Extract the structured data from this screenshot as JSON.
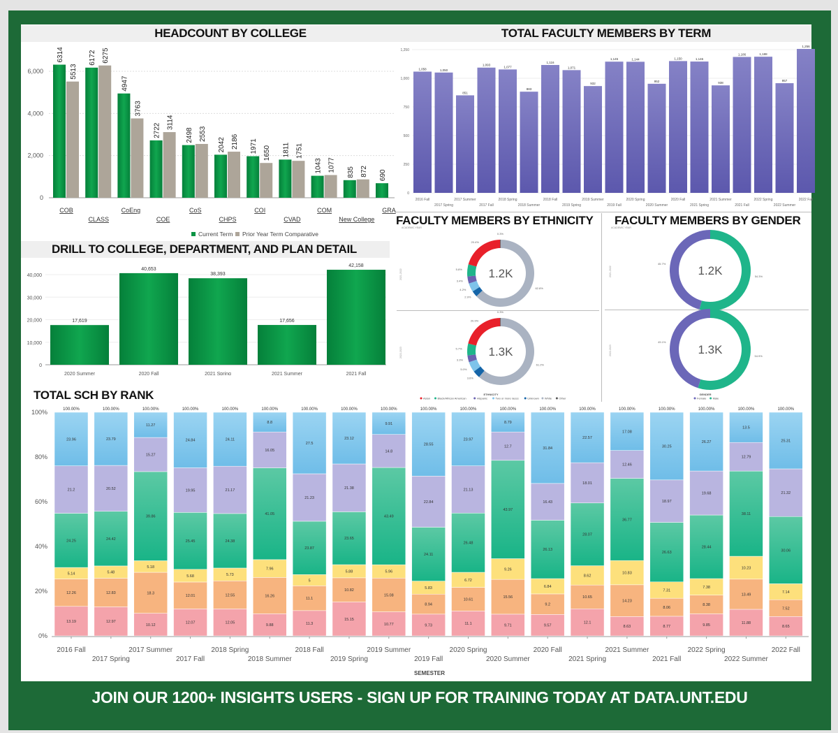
{
  "colors": {
    "frame": "#1d6a37",
    "current": "#0a9444",
    "prior": "#ada599",
    "faculty": "#6a66b6"
  },
  "headcount": {
    "title": "HEADCOUNT BY COLLEGE",
    "chart_data": {
      "type": "bar",
      "categories": [
        "COB",
        "CLASS",
        "CoEng",
        "COE",
        "CoS",
        "CHPS",
        "COI",
        "CVAD",
        "COM",
        "New College",
        "GRA"
      ],
      "series": [
        {
          "name": "Current Term",
          "values": [
            6314,
            6172,
            4947,
            2722,
            2498,
            2042,
            1971,
            1811,
            1043,
            835,
            690
          ]
        },
        {
          "name": "Prior Year Term Comparative",
          "values": [
            5513,
            6275,
            3763,
            3114,
            2553,
            2186,
            1650,
            1751,
            1077,
            872,
            null
          ]
        }
      ],
      "yticks": [
        "0",
        "2,000",
        "4,000",
        "6,000"
      ],
      "ylim": [
        0,
        7000
      ],
      "legend": "bottom"
    }
  },
  "drill": {
    "title": "DRILL TO COLLEGE, DEPARTMENT, AND PLAN DETAIL",
    "chart_data": {
      "type": "bar",
      "categories": [
        "2020 Summer",
        "2020 Fall",
        "2021 Spring",
        "2021 Summer",
        "2021 Fall"
      ],
      "values": [
        17619,
        40653,
        38393,
        17656,
        42158
      ],
      "labels": [
        "17,619",
        "40,653",
        "38,393",
        "17,656",
        "42,158"
      ],
      "yticks": [
        "0",
        "10,000",
        "20,000",
        "30,000",
        "40,000"
      ],
      "ylim": [
        0,
        45000
      ]
    }
  },
  "faculty_term": {
    "title": "TOTAL FACULTY MEMBERS BY TERM",
    "chart_data": {
      "type": "bar",
      "categories": [
        "2016 Fall",
        "2017 Spring",
        "2017 Summer",
        "2017 Fall",
        "2018 Spring",
        "2018 Summer",
        "2018 Fall",
        "2019 Spring",
        "2019 Summer",
        "2019 Fall",
        "2020 Spring",
        "2020 Summer",
        "2020 Fall",
        "2021 Spring",
        "2021 Summer",
        "2021 Fall",
        "2022 Spring",
        "2022 Summer",
        "2022 Fall"
      ],
      "values": [
        1058,
        1050,
        851,
        1093,
        1077,
        883,
        1116,
        1071,
        932,
        1145,
        1144,
        952,
        1150,
        1146,
        938,
        1186,
        1188,
        957,
        1256
      ],
      "labels": [
        "1,058",
        "1,050",
        "851",
        "1,093",
        "1,077",
        "883",
        "1,116",
        "1,071",
        "932",
        "1,145",
        "1,144",
        "952",
        "1,150",
        "1,146",
        "938",
        "1,186",
        "1,188",
        "957",
        "1,256"
      ],
      "yticks": [
        "0",
        "250",
        "500",
        "750",
        "1,000",
        "1,250"
      ],
      "ylim": [
        0,
        1250
      ]
    }
  },
  "ethnicity": {
    "title": "FACULTY MEMBERS BY ETHNICITY",
    "row_header": "ACADEMIC YEAR",
    "legend_title": "ETHNICITY",
    "chart_data": {
      "type": "pie",
      "categories": [
        "White",
        "Unknown",
        "Two or more races",
        "Hispanic",
        "Black/African American",
        "Asian",
        "Other"
      ],
      "legend_order": [
        "Asian",
        "Black/African American",
        "Hispanic",
        "Two or more races",
        "Unknown",
        "White",
        "Other"
      ],
      "colors": {
        "Asian": "#e8202a",
        "Black/African American": "#1fb58a",
        "Hispanic": "#6a62b0",
        "Two or more races": "#7ec3ea",
        "Unknown": "#1565a8",
        "White": "#aab3c2",
        "Other": "#555555"
      },
      "panels": [
        {
          "year": "2021-2022",
          "total": "1.2K",
          "values": [
            62.8,
            2.9,
            4.2,
            3.4,
            5.8,
            20.4,
            0.3
          ],
          "labels": [
            "62.8%",
            "2.9%",
            "4.2%",
            "3.4%",
            "5.8%",
            "20.4%",
            "0.3%"
          ]
        },
        {
          "year": "2022-2023",
          "total": "1.3K",
          "values": [
            61.2,
            3.6,
            5.0,
            3.3,
            5.7,
            20.9,
            0.3
          ],
          "labels": [
            "61.2%",
            "3.6%",
            "5.0%",
            "3.3%",
            "5.7%",
            "20.9%",
            "0.3%"
          ]
        }
      ]
    }
  },
  "gender": {
    "title": "FACULTY MEMBERS BY GENDER",
    "row_header": "ACADEMIC YEAR",
    "legend_title": "GENDER",
    "chart_data": {
      "type": "pie",
      "categories": [
        "Male",
        "Female"
      ],
      "legend_order": [
        "Female",
        "Male"
      ],
      "colors": {
        "Male": "#1fb58a",
        "Female": "#6b67b8"
      },
      "panels": [
        {
          "year": "2021-2022",
          "total": "1.2K",
          "values": [
            54.3,
            45.7
          ],
          "labels": [
            "54.3%",
            "45.7%"
          ]
        },
        {
          "year": "2022-2023",
          "total": "1.3K",
          "values": [
            54.9,
            45.1
          ],
          "labels": [
            "54.9%",
            "45.1%"
          ]
        }
      ]
    }
  },
  "sch": {
    "title": "TOTAL SCH BY RANK",
    "xlabel": "SEMESTER",
    "chart_data": {
      "type": "bar",
      "stacked": true,
      "percent": true,
      "categories": [
        "2016 Fall",
        "2017 Spring",
        "2017 Summer",
        "2017 Fall",
        "2018 Spring",
        "2018 Summer",
        "2018 Fall",
        "2019 Spring",
        "2019 Summer",
        "2019 Fall",
        "2020 Spring",
        "2020 Summer",
        "2020 Fall",
        "2021 Spring",
        "2021 Summer",
        "2021 Fall",
        "2022 Spring",
        "2022 Summer",
        "2022 Fall"
      ],
      "series_colors": [
        "#f4a3ab",
        "#f7b47f",
        "#fde07c",
        "#3cc49a",
        "#b9b5e0",
        "#8ccdf0"
      ],
      "series": [
        {
          "values": [
            13.19,
            12.97,
            10.12,
            12.07,
            12.05,
            9.88,
            11.3,
            15.15,
            10.77,
            9.73,
            11.1,
            9.71,
            9.57,
            12.1,
            8.63,
            8.77,
            9.85,
            11.88,
            8.65
          ]
        },
        {
          "values": [
            12.26,
            12.83,
            18.3,
            12.01,
            12.55,
            16.26,
            11.1,
            10.82,
            15.08,
            8.94,
            10.61,
            15.56,
            9.2,
            10.65,
            14.23,
            8.06,
            8.38,
            13.49,
            7.52
          ]
        },
        {
          "values": [
            5.14,
            5.48,
            5.18,
            5.68,
            5.73,
            7.96,
            5.0,
            5.88,
            5.96,
            5.83,
            6.72,
            9.26,
            6.84,
            8.62,
            10.83,
            7.31,
            7.38,
            10.23,
            7.14
          ]
        },
        {
          "values": [
            24.25,
            24.42,
            39.86,
            25.45,
            24.38,
            41.05,
            23.87,
            23.65,
            43.49,
            24.11,
            26.48,
            43.97,
            26.13,
            28.07,
            36.77,
            26.63,
            28.44,
            38.11,
            30.06
          ]
        },
        {
          "values": [
            21.2,
            20.52,
            15.27,
            19.95,
            21.17,
            16.05,
            21.23,
            21.38,
            14.8,
            22.84,
            21.13,
            12.7,
            16.43,
            18.01,
            12.46,
            18.97,
            19.68,
            12.79,
            21.32
          ]
        },
        {
          "values": [
            23.96,
            23.79,
            11.27,
            24.84,
            24.11,
            8.8,
            27.5,
            23.12,
            9.91,
            28.55,
            23.97,
            8.79,
            31.84,
            22.57,
            17.08,
            30.25,
            26.27,
            13.5,
            25.31
          ]
        }
      ],
      "total_label": "100.00%",
      "yticks": [
        "0%",
        "20%",
        "40%",
        "60%",
        "80%",
        "100%"
      ],
      "ylim": [
        0,
        100
      ]
    }
  },
  "footer": {
    "text": "JOIN OUR 1200+ INSIGHTS USERS - SIGN UP FOR TRAINING TODAY AT DATA.UNT.EDU"
  }
}
